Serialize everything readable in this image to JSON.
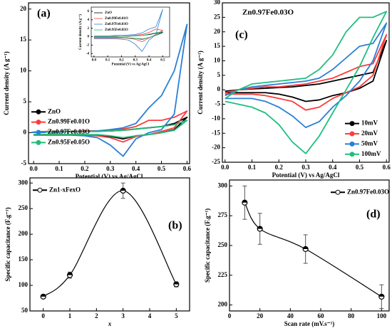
{
  "chart_data": [
    {
      "type": "line",
      "label": "(a)",
      "xlabel": "Potential (V) vs Ag/AgCl",
      "ylabel": "Current density (A g⁻¹)",
      "x": [
        0,
        0.05,
        0.1,
        0.15,
        0.2,
        0.25,
        0.3,
        0.35,
        0.4,
        0.45,
        0.5,
        0.55,
        0.6,
        0.55,
        0.5,
        0.45,
        0.4,
        0.35,
        0.3,
        0.25,
        0.2,
        0.15,
        0.1,
        0.05,
        0
      ],
      "xlim": [
        -0.02,
        0.61
      ],
      "ylim": [
        -5,
        21
      ],
      "xticks": [
        {
          "value": 0,
          "label": "0.0"
        },
        0.1,
        0.2,
        0.3,
        0.4,
        0.5,
        0.6
      ],
      "yticks": [
        -5,
        0,
        5,
        10,
        15,
        20
      ],
      "legend": "lower left",
      "series": [
        {
          "name": "ZnO",
          "color": "#000000",
          "values": [
            0.1,
            0.2,
            0.2,
            0.2,
            0.2,
            0.3,
            0.3,
            0.4,
            0.6,
            0.8,
            1,
            1.5,
            2.5,
            0.5,
            0,
            -0.3,
            -0.5,
            -1,
            -0.6,
            -0.4,
            -0.3,
            -0.3,
            -0.3,
            -0.3,
            -0.3
          ]
        },
        {
          "name": "Zn0.99Fe0.01O",
          "color": "#ff3b3b",
          "values": [
            0.1,
            0.2,
            0.2,
            0.2,
            0.3,
            0.3,
            0.4,
            0.6,
            1,
            2,
            2,
            2.5,
            3.5,
            0.8,
            0.2,
            -0.3,
            -0.6,
            -1.5,
            -0.8,
            -0.5,
            -0.4,
            -0.3,
            -0.3,
            -0.3,
            -0.3
          ]
        },
        {
          "name": "Zn0.97Fe0.03O",
          "color": "#2a7fd6",
          "values": [
            0.1,
            0.1,
            0.1,
            0.2,
            0.2,
            0.3,
            0.5,
            0.8,
            1.5,
            4,
            6,
            10,
            17.5,
            3,
            0.5,
            0,
            -1,
            -3.8,
            -2,
            -0.8,
            -0.5,
            -0.4,
            -0.4,
            -0.4,
            -0.4
          ]
        },
        {
          "name": "Zn0.95Fe0.05O",
          "color": "#22bb77",
          "values": [
            0.1,
            0.1,
            0.2,
            0.2,
            0.2,
            0.2,
            0.3,
            0.4,
            0.6,
            0.8,
            1,
            1.3,
            2,
            0.4,
            0,
            -0.3,
            -0.5,
            -0.8,
            -0.5,
            -0.3,
            -0.3,
            -0.3,
            -0.3,
            -0.3,
            -0.3
          ]
        }
      ]
    },
    {
      "type": "line",
      "xlabel": "Potential (V) vs Ag/AgCl",
      "ylabel": "Current density (A g⁻¹)",
      "x": [
        0,
        0.05,
        0.1,
        0.15,
        0.2,
        0.25,
        0.3,
        0.35,
        0.4,
        0.45,
        0.5,
        0.45,
        0.4,
        0.35,
        0.3,
        0.25,
        0.2,
        0.15,
        0.1,
        0.05,
        0
      ],
      "xlim": [
        -0.02,
        0.55
      ],
      "ylim": [
        -4.8,
        7
      ],
      "xticks": [
        {
          "value": 0,
          "label": "0.0"
        },
        0.1,
        0.2,
        0.3,
        0.4,
        0.5
      ],
      "yticks": [
        -4,
        -2,
        0,
        2,
        4,
        6
      ],
      "legend": "upper left",
      "series": [
        {
          "name": "ZnO",
          "color": "#000000",
          "values": [
            0,
            0,
            0,
            0,
            0.1,
            0.1,
            0.2,
            0.3,
            0.5,
            0.8,
            1,
            0.3,
            -0.2,
            -0.6,
            -0.4,
            -0.3,
            -0.2,
            -0.2,
            -0.2,
            -0.2,
            -0.2
          ]
        },
        {
          "name": "Zn0.99Fe0.01O",
          "color": "#ff3b3b",
          "values": [
            0,
            0,
            0,
            0.1,
            0.1,
            0.2,
            0.3,
            0.5,
            1,
            1.8,
            1.5,
            0.5,
            -0.3,
            -1.2,
            -0.6,
            -0.4,
            -0.3,
            -0.3,
            -0.3,
            -0.3,
            -0.3
          ]
        },
        {
          "name": "Zn0.97Fe0.03O",
          "color": "#2a7fd6",
          "values": [
            0.2,
            0.2,
            0.2,
            0.3,
            0.3,
            0.4,
            0.5,
            0.9,
            1.8,
            2.3,
            6.5,
            0.5,
            -0.8,
            -3.5,
            -1.8,
            -0.8,
            -0.6,
            -0.5,
            -0.5,
            -0.5,
            -0.5
          ]
        },
        {
          "name": "Zn0.95Fe0.05O",
          "color": "#22bb77",
          "values": [
            0,
            0,
            0,
            0,
            0.1,
            0.1,
            0.2,
            0.3,
            0.6,
            0.9,
            1.2,
            0.3,
            -0.2,
            -0.7,
            -0.4,
            -0.3,
            -0.2,
            -0.2,
            -0.2,
            -0.2,
            -0.2
          ]
        }
      ]
    },
    {
      "type": "line",
      "label": "(c)",
      "title": "Zn0.97Fe0.03O",
      "xlabel": "Potential (V) vs Ag/AgCl",
      "ylabel": "Current density (A g⁻¹)",
      "x": [
        0,
        0.05,
        0.1,
        0.15,
        0.2,
        0.25,
        0.3,
        0.35,
        0.4,
        0.45,
        0.5,
        0.55,
        0.6,
        0.55,
        0.5,
        0.45,
        0.4,
        0.35,
        0.3,
        0.25,
        0.2,
        0.15,
        0.1,
        0.05,
        0
      ],
      "xlim": [
        -0.01,
        0.61
      ],
      "ylim": [
        -25,
        30
      ],
      "xticks": [
        {
          "value": 0,
          "label": "0.0"
        },
        0.1,
        0.2,
        0.3,
        0.4,
        0.5,
        0.6
      ],
      "yticks": [
        -25,
        -20,
        -15,
        -10,
        -5,
        0,
        5,
        10,
        15,
        20,
        25,
        30
      ],
      "legend": "lower right",
      "series": [
        {
          "name": "10mV",
          "color": "#000000",
          "values": [
            -0.5,
            0,
            0.3,
            0.5,
            0.8,
            1,
            1.5,
            2,
            3,
            4,
            5,
            6,
            17,
            3,
            0.5,
            -1,
            -2,
            -3.5,
            -4,
            -2.5,
            -1.5,
            -1,
            -1,
            -1,
            -1
          ]
        },
        {
          "name": "20mV",
          "color": "#ff3b3b",
          "values": [
            -1,
            0,
            0.5,
            1,
            1,
            1.5,
            2,
            3,
            4,
            6,
            8,
            9,
            19,
            5,
            1,
            -1,
            -3,
            -6,
            -7,
            -4,
            -3,
            -2,
            -1.5,
            -1.5,
            -1.5
          ]
        },
        {
          "name": "50mV",
          "color": "#2a7fd6",
          "values": [
            -2,
            0,
            1,
            1.5,
            2,
            2.5,
            3,
            4,
            7,
            11,
            15,
            16,
            23,
            10,
            3,
            -2,
            -6,
            -11,
            -13,
            -9,
            -6,
            -4,
            -3,
            -3,
            -3
          ]
        },
        {
          "name": "100mV",
          "color": "#1fbf7f",
          "values": [
            -3,
            0,
            2,
            2.5,
            3,
            3.5,
            4,
            7,
            12,
            20,
            25,
            25,
            27,
            18,
            8,
            0,
            -8,
            -16,
            -22,
            -18,
            -12,
            -8,
            -6,
            -5,
            -4
          ]
        }
      ]
    },
    {
      "type": "scatter",
      "label": "(b)",
      "xlabel": "x",
      "ylabel": "Specific capacitance (F.g⁻¹)",
      "x": [
        0,
        1,
        3,
        5
      ],
      "xlim": [
        -0.5,
        5.5
      ],
      "ylim": [
        50,
        310
      ],
      "xticks": [
        0,
        1,
        2,
        3,
        4,
        5
      ],
      "yticks": [
        50,
        100,
        150,
        200,
        250,
        300
      ],
      "legend": "upper left",
      "series": [
        {
          "name": "Zn1-xFexO",
          "color": "#000000",
          "values": [
            78,
            120,
            285,
            102
          ],
          "errors": [
            3,
            6,
            15,
            5
          ]
        }
      ]
    },
    {
      "type": "scatter",
      "label": "(d)",
      "xlabel": "Scan rate (mV.s⁻¹)",
      "ylabel": "Specific capacitance (F.g⁻¹)",
      "x": [
        10,
        20,
        50,
        100
      ],
      "xlim": [
        0,
        105
      ],
      "ylim": [
        195,
        305
      ],
      "xticks": [
        0,
        20,
        40,
        60,
        80,
        100
      ],
      "yticks": [
        200,
        225,
        250,
        275,
        300
      ],
      "legend": "upper right",
      "series": [
        {
          "name": "Zn0.97Fe0.03O",
          "color": "#000000",
          "values": [
            286,
            264,
            247,
            207
          ],
          "errors": [
            14,
            13,
            12,
            10
          ]
        }
      ]
    }
  ]
}
